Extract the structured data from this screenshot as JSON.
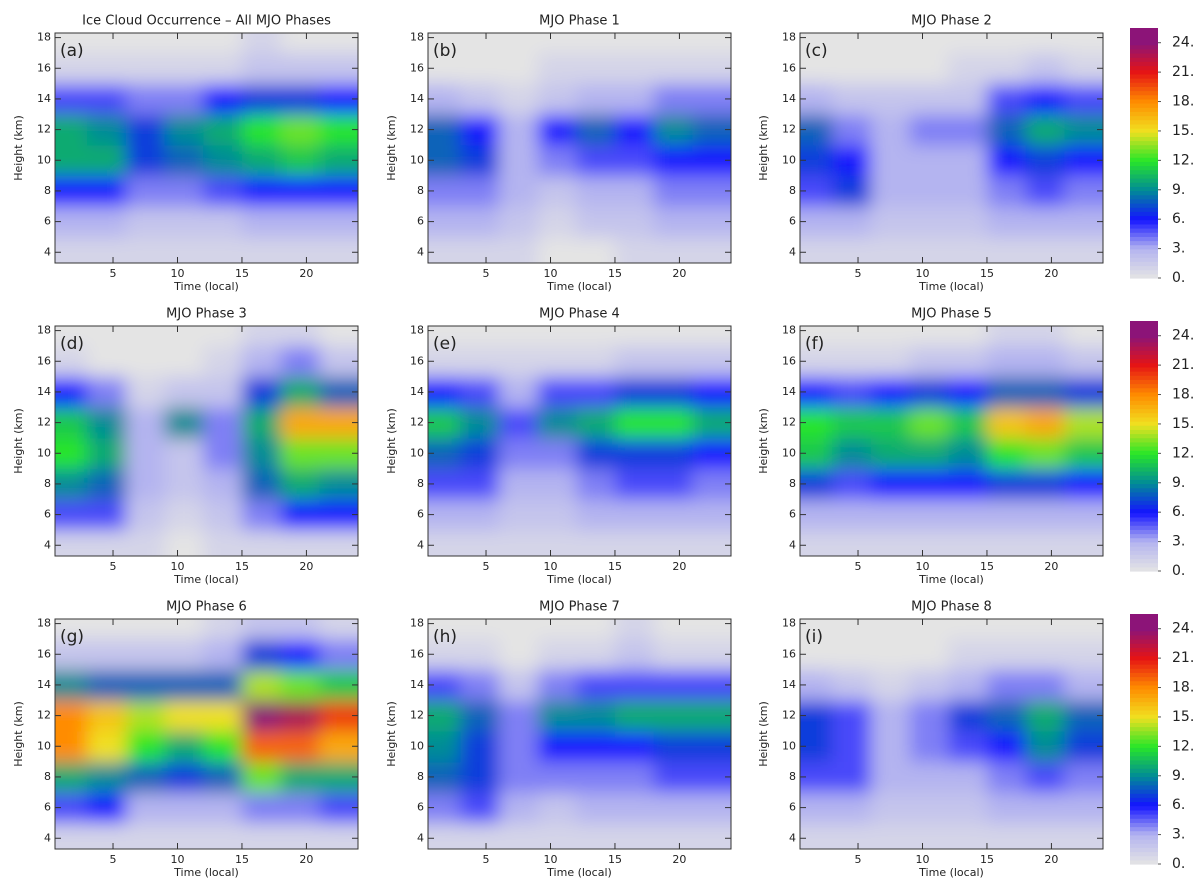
{
  "chart_data": [
    {
      "type": "heatmap",
      "title": "Ice Cloud Occurrence – All MJO Phases",
      "panel_label": "(a)",
      "xlabel": "Time (local)",
      "ylabel": "Height (km)",
      "x": [
        1.5,
        4.5,
        7.5,
        10.5,
        13.5,
        16.5,
        19.5,
        22.5
      ],
      "y": [
        4,
        6,
        8,
        10,
        12,
        14,
        16,
        18
      ],
      "z": [
        [
          1,
          1,
          1,
          1,
          1,
          1,
          1,
          1
        ],
        [
          3,
          3,
          2,
          2,
          2,
          3,
          3,
          3
        ],
        [
          6,
          6,
          4,
          4,
          5,
          6,
          6,
          6
        ],
        [
          10,
          10,
          7,
          8,
          9,
          10,
          11,
          10
        ],
        [
          10,
          9,
          7,
          9,
          10,
          12,
          13,
          12
        ],
        [
          5,
          5,
          4,
          4,
          6,
          7,
          7,
          6
        ],
        [
          1,
          1,
          1,
          1,
          1,
          2,
          2,
          2
        ],
        [
          0,
          0,
          0,
          0,
          0,
          1,
          0,
          0
        ]
      ],
      "xlim": [
        0.5,
        24
      ],
      "ylim": [
        3.3,
        18.3
      ],
      "xticks": [
        5,
        10,
        15,
        20
      ],
      "yticks": [
        4,
        6,
        8,
        10,
        12,
        14,
        16,
        18
      ]
    },
    {
      "type": "heatmap",
      "title": "MJO Phase 1",
      "panel_label": "(b)",
      "xlabel": "Time (local)",
      "ylabel": "Height (km)",
      "x": [
        1.5,
        4.5,
        7.5,
        10.5,
        13.5,
        16.5,
        19.5,
        22.5
      ],
      "y": [
        4,
        6,
        8,
        10,
        12,
        14,
        16,
        18
      ],
      "z": [
        [
          1,
          1,
          1,
          0,
          0,
          1,
          1,
          1
        ],
        [
          3,
          3,
          2,
          1,
          2,
          2,
          3,
          3
        ],
        [
          4,
          4,
          3,
          2,
          3,
          3,
          4,
          4
        ],
        [
          8,
          7,
          3,
          4,
          5,
          5,
          6,
          6
        ],
        [
          8,
          6,
          3,
          6,
          8,
          6,
          9,
          8
        ],
        [
          3,
          2,
          1,
          2,
          3,
          3,
          4,
          4
        ],
        [
          0,
          0,
          0,
          1,
          1,
          1,
          1,
          1
        ],
        [
          0,
          0,
          0,
          0,
          0,
          0,
          0,
          0
        ]
      ],
      "xlim": [
        0.5,
        24
      ],
      "ylim": [
        3.3,
        18.3
      ],
      "xticks": [
        5,
        10,
        15,
        20
      ],
      "yticks": [
        4,
        6,
        8,
        10,
        12,
        14,
        16,
        18
      ]
    },
    {
      "type": "heatmap",
      "title": "MJO Phase 2",
      "panel_label": "(c)",
      "xlabel": "Time (local)",
      "ylabel": "Height (km)",
      "x": [
        1.5,
        4.5,
        7.5,
        10.5,
        13.5,
        16.5,
        19.5,
        22.5
      ],
      "y": [
        4,
        6,
        8,
        10,
        12,
        14,
        16,
        18
      ],
      "z": [
        [
          1,
          1,
          1,
          1,
          1,
          1,
          1,
          1
        ],
        [
          3,
          3,
          2,
          2,
          2,
          3,
          3,
          3
        ],
        [
          5,
          7,
          3,
          3,
          3,
          4,
          5,
          4
        ],
        [
          7,
          6,
          3,
          3,
          3,
          6,
          7,
          6
        ],
        [
          8,
          4,
          3,
          4,
          4,
          8,
          10,
          9
        ],
        [
          3,
          2,
          2,
          2,
          2,
          5,
          6,
          5
        ],
        [
          0,
          0,
          0,
          0,
          1,
          1,
          2,
          1
        ],
        [
          0,
          0,
          0,
          0,
          0,
          0,
          0,
          0
        ]
      ],
      "xlim": [
        0.5,
        24
      ],
      "ylim": [
        3.3,
        18.3
      ],
      "xticks": [
        5,
        10,
        15,
        20
      ],
      "yticks": [
        4,
        6,
        8,
        10,
        12,
        14,
        16,
        18
      ]
    },
    {
      "type": "heatmap",
      "title": "MJO Phase 3",
      "panel_label": "(d)",
      "xlabel": "Time (local)",
      "ylabel": "Height (km)",
      "x": [
        1.5,
        4.5,
        7.5,
        10.5,
        13.5,
        16.5,
        19.5,
        22.5
      ],
      "y": [
        4,
        6,
        8,
        10,
        12,
        14,
        16,
        18
      ],
      "z": [
        [
          1,
          1,
          1,
          0,
          1,
          1,
          1,
          1
        ],
        [
          5,
          5,
          2,
          1,
          2,
          4,
          6,
          6
        ],
        [
          9,
          8,
          3,
          2,
          3,
          8,
          10,
          9
        ],
        [
          12,
          10,
          3,
          2,
          4,
          9,
          13,
          13
        ],
        [
          11,
          9,
          3,
          9,
          4,
          10,
          17,
          17
        ],
        [
          6,
          4,
          1,
          2,
          2,
          7,
          10,
          8
        ],
        [
          1,
          0,
          0,
          0,
          1,
          3,
          4,
          2
        ],
        [
          0,
          0,
          0,
          0,
          0,
          1,
          1,
          0
        ]
      ],
      "xlim": [
        0.5,
        24
      ],
      "ylim": [
        3.3,
        18.3
      ],
      "xticks": [
        5,
        10,
        15,
        20
      ],
      "yticks": [
        4,
        6,
        8,
        10,
        12,
        14,
        16,
        18
      ]
    },
    {
      "type": "heatmap",
      "title": "MJO Phase 4",
      "panel_label": "(e)",
      "xlabel": "Time (local)",
      "ylabel": "Height (km)",
      "x": [
        1.5,
        4.5,
        7.5,
        10.5,
        13.5,
        16.5,
        19.5,
        22.5
      ],
      "y": [
        4,
        6,
        8,
        10,
        12,
        14,
        16,
        18
      ],
      "z": [
        [
          1,
          1,
          1,
          1,
          1,
          1,
          1,
          1
        ],
        [
          3,
          3,
          2,
          2,
          3,
          3,
          3,
          3
        ],
        [
          5,
          5,
          3,
          3,
          4,
          5,
          5,
          4
        ],
        [
          8,
          7,
          4,
          4,
          7,
          7,
          7,
          6
        ],
        [
          11,
          9,
          5,
          9,
          10,
          12,
          12,
          10
        ],
        [
          6,
          5,
          3,
          5,
          5,
          7,
          7,
          6
        ],
        [
          1,
          1,
          1,
          1,
          1,
          2,
          2,
          2
        ],
        [
          0,
          0,
          0,
          0,
          0,
          0,
          0,
          0
        ]
      ],
      "xlim": [
        0.5,
        24
      ],
      "ylim": [
        3.3,
        18.3
      ],
      "xticks": [
        5,
        10,
        15,
        20
      ],
      "yticks": [
        4,
        6,
        8,
        10,
        12,
        14,
        16,
        18
      ]
    },
    {
      "type": "heatmap",
      "title": "MJO Phase 5",
      "panel_label": "(f)",
      "xlabel": "Time (local)",
      "ylabel": "Height (km)",
      "x": [
        1.5,
        4.5,
        7.5,
        10.5,
        13.5,
        16.5,
        19.5,
        22.5
      ],
      "y": [
        4,
        6,
        8,
        10,
        12,
        14,
        16,
        18
      ],
      "z": [
        [
          1,
          1,
          1,
          1,
          1,
          1,
          1,
          1
        ],
        [
          3,
          3,
          3,
          3,
          3,
          3,
          3,
          3
        ],
        [
          7,
          5,
          6,
          6,
          6,
          7,
          7,
          6
        ],
        [
          11,
          9,
          10,
          10,
          9,
          12,
          13,
          11
        ],
        [
          12,
          11,
          11,
          13,
          11,
          16,
          17,
          14
        ],
        [
          6,
          5,
          6,
          7,
          6,
          8,
          8,
          7
        ],
        [
          1,
          1,
          1,
          2,
          2,
          3,
          3,
          2
        ],
        [
          0,
          0,
          0,
          0,
          0,
          1,
          1,
          0
        ]
      ],
      "xlim": [
        0.5,
        24
      ],
      "ylim": [
        3.3,
        18.3
      ],
      "xticks": [
        5,
        10,
        15,
        20
      ],
      "yticks": [
        4,
        6,
        8,
        10,
        12,
        14,
        16,
        18
      ]
    },
    {
      "type": "heatmap",
      "title": "MJO Phase 6",
      "panel_label": "(g)",
      "xlabel": "Time (local)",
      "ylabel": "Height (km)",
      "x": [
        1.5,
        4.5,
        7.5,
        10.5,
        13.5,
        16.5,
        19.5,
        22.5
      ],
      "y": [
        4,
        6,
        8,
        10,
        12,
        14,
        16,
        18
      ],
      "z": [
        [
          1,
          1,
          1,
          1,
          1,
          1,
          1,
          1
        ],
        [
          5,
          6,
          3,
          3,
          3,
          4,
          4,
          5
        ],
        [
          10,
          9,
          8,
          7,
          8,
          13,
          10,
          10
        ],
        [
          18,
          15,
          12,
          10,
          12,
          19,
          19,
          17
        ],
        [
          18,
          16,
          14,
          15,
          15,
          24,
          23,
          20
        ],
        [
          9,
          8,
          8,
          8,
          8,
          14,
          13,
          11
        ],
        [
          2,
          2,
          2,
          2,
          3,
          7,
          6,
          4
        ],
        [
          0,
          0,
          0,
          0,
          1,
          2,
          2,
          1
        ]
      ],
      "xlim": [
        0.5,
        24
      ],
      "ylim": [
        3.3,
        18.3
      ],
      "xticks": [
        5,
        10,
        15,
        20
      ],
      "yticks": [
        4,
        6,
        8,
        10,
        12,
        14,
        16,
        18
      ]
    },
    {
      "type": "heatmap",
      "title": "MJO Phase 7",
      "panel_label": "(h)",
      "xlabel": "Time (local)",
      "ylabel": "Height (km)",
      "x": [
        1.5,
        4.5,
        7.5,
        10.5,
        13.5,
        16.5,
        19.5,
        22.5
      ],
      "y": [
        4,
        6,
        8,
        10,
        12,
        14,
        16,
        18
      ],
      "z": [
        [
          1,
          1,
          1,
          1,
          1,
          1,
          1,
          1
        ],
        [
          4,
          5,
          3,
          2,
          3,
          3,
          3,
          3
        ],
        [
          8,
          7,
          4,
          4,
          4,
          4,
          5,
          5
        ],
        [
          9,
          7,
          4,
          6,
          6,
          6,
          7,
          7
        ],
        [
          10,
          8,
          4,
          9,
          9,
          10,
          10,
          10
        ],
        [
          5,
          4,
          2,
          4,
          5,
          5,
          5,
          5
        ],
        [
          1,
          1,
          0,
          1,
          1,
          2,
          1,
          1
        ],
        [
          0,
          0,
          0,
          0,
          0,
          1,
          0,
          0
        ]
      ],
      "xlim": [
        0.5,
        24
      ],
      "ylim": [
        3.3,
        18.3
      ],
      "xticks": [
        5,
        10,
        15,
        20
      ],
      "yticks": [
        4,
        6,
        8,
        10,
        12,
        14,
        16,
        18
      ]
    },
    {
      "type": "heatmap",
      "title": "MJO Phase 8",
      "panel_label": "(i)",
      "xlabel": "Time (local)",
      "ylabel": "Height (km)",
      "x": [
        1.5,
        4.5,
        7.5,
        10.5,
        13.5,
        16.5,
        19.5,
        22.5
      ],
      "y": [
        4,
        6,
        8,
        10,
        12,
        14,
        16,
        18
      ],
      "z": [
        [
          1,
          1,
          1,
          1,
          1,
          1,
          1,
          1
        ],
        [
          3,
          3,
          2,
          2,
          2,
          3,
          3,
          3
        ],
        [
          5,
          5,
          3,
          3,
          3,
          4,
          5,
          4
        ],
        [
          7,
          5,
          3,
          4,
          5,
          6,
          9,
          7
        ],
        [
          7,
          5,
          3,
          4,
          7,
          8,
          10,
          8
        ],
        [
          3,
          2,
          1,
          2,
          3,
          4,
          4,
          3
        ],
        [
          0,
          0,
          0,
          0,
          1,
          1,
          1,
          1
        ],
        [
          0,
          0,
          0,
          0,
          0,
          0,
          0,
          0
        ]
      ],
      "xlim": [
        0.5,
        24
      ],
      "ylim": [
        3.3,
        18.3
      ],
      "xticks": [
        5,
        10,
        15,
        20
      ],
      "yticks": [
        4,
        6,
        8,
        10,
        12,
        14,
        16,
        18
      ]
    }
  ],
  "colorbar": {
    "lim": [
      0,
      25.5
    ],
    "ticks": [
      {
        "value": 0,
        "label": "0."
      },
      {
        "value": 3,
        "label": "3."
      },
      {
        "value": 6,
        "label": "6."
      },
      {
        "value": 9,
        "label": "9."
      },
      {
        "value": 12,
        "label": "12."
      },
      {
        "value": 15,
        "label": "15."
      },
      {
        "value": 18,
        "label": "18."
      },
      {
        "value": 21,
        "label": "21."
      },
      {
        "value": 24,
        "label": "24."
      }
    ],
    "colors": [
      "#e4e4e4",
      "#b4b4f0",
      "#1414ff",
      "#008c96",
      "#28e628",
      "#f0e020",
      "#ff8c00",
      "#e61414",
      "#8c1478"
    ]
  }
}
